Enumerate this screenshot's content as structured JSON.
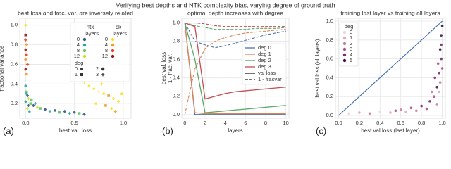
{
  "title": "Verifying best depths and NTK complexity bias, varying degree of ground truth",
  "chart_data": [
    {
      "type": "scatter",
      "panel_label": "(a)",
      "title": "best loss and frac. var. are inversely related",
      "x_label": "best val. loss",
      "y_label": "fractional variance",
      "xlim": [
        -0.06,
        1.08
      ],
      "ylim": [
        0.05,
        1.07
      ],
      "xticks": [
        {
          "value": 0,
          "label": "0.0"
        },
        {
          "value": 0.5,
          "label": "0.5"
        },
        {
          "value": 1,
          "label": "1.0"
        }
      ],
      "yticks": [
        0.2,
        0.4,
        0.6,
        0.8,
        {
          "value": 1,
          "label": "1.0"
        }
      ],
      "grid": true,
      "series": [
        {
          "name": "ntk",
          "legend_title": "layers",
          "legend_entries": [
            {
              "label": "0",
              "color": "#3b528b"
            },
            {
              "label": "4",
              "color": "#21a8a0"
            },
            {
              "label": "8",
              "color": "#5ec962"
            },
            {
              "label": "12",
              "color": "#c8e020"
            }
          ],
          "x": [
            0.0,
            0.01,
            0.02,
            0.03,
            0.0,
            0.05,
            0.08,
            0.1,
            0.12,
            0.15,
            0.2,
            0.25,
            0.3,
            0.35,
            0.4,
            0.45,
            0.5,
            0.55,
            0.6,
            0.02,
            0.04,
            0.06,
            0.01,
            0.03
          ],
          "values": [
            0.38,
            0.32,
            0.28,
            0.25,
            0.22,
            0.2,
            0.18,
            0.2,
            0.16,
            0.15,
            0.14,
            0.12,
            0.13,
            0.11,
            0.12,
            0.1,
            0.11,
            0.1,
            0.09,
            0.15,
            0.12,
            0.24,
            0.3,
            0.18
          ],
          "colors": [
            "#21a8a0",
            "#5ec962",
            "#3b528b",
            "#c8e020",
            "#21a8a0",
            "#5ec962",
            "#3b528b",
            "#21a8a0",
            "#c8e020",
            "#5ec962",
            "#3b528b",
            "#21a8a0",
            "#3b528b",
            "#5ec962",
            "#3b528b",
            "#21a8a0",
            "#3b528b",
            "#5ec962",
            "#3b528b",
            "#c8e020",
            "#21a8a0",
            "#5ec962",
            "#21a8a0",
            "#3b528b"
          ],
          "markers": [
            "circle",
            "square",
            "diamond",
            "plus",
            "circle",
            "square",
            "diamond",
            "plus",
            "circle",
            "square",
            "diamond",
            "plus",
            "circle",
            "square",
            "diamond",
            "plus",
            "circle",
            "square",
            "diamond",
            "plus",
            "circle",
            "square",
            "diamond",
            "plus"
          ]
        },
        {
          "name": "ck",
          "legend_title": "layers",
          "legend_entries": [
            {
              "label": "0",
              "color": "#f5e31b"
            },
            {
              "label": "4",
              "color": "#f59a1b"
            },
            {
              "label": "8",
              "color": "#e8401a"
            },
            {
              "label": "12",
              "color": "#a01010"
            }
          ],
          "x": [
            0.0,
            0.0,
            0.0,
            0.01,
            0.0,
            0.01,
            0.0,
            0.02,
            0.0,
            0.01,
            0.7,
            0.75,
            0.8,
            0.85,
            0.9,
            0.95,
            0.72,
            0.82,
            0.88,
            0.6,
            0.65,
            0.98,
            0.92,
            0.78
          ],
          "values": [
            1.0,
            0.9,
            0.85,
            0.8,
            0.75,
            0.7,
            0.65,
            0.6,
            0.55,
            0.5,
            0.35,
            0.32,
            0.3,
            0.28,
            0.25,
            0.22,
            0.2,
            0.18,
            0.15,
            0.42,
            0.38,
            0.3,
            0.12,
            0.4
          ],
          "colors": [
            "#f5e31b",
            "#a01010",
            "#e8401a",
            "#f59a1b",
            "#a01010",
            "#e8401a",
            "#f59a1b",
            "#e8401a",
            "#a01010",
            "#f59a1b",
            "#f5e31b",
            "#f5e31b",
            "#f5e31b",
            "#f59a1b",
            "#f5e31b",
            "#f5e31b",
            "#f5e31b",
            "#f59a1b",
            "#f5e31b",
            "#f5e31b",
            "#f5e31b",
            "#f5e31b",
            "#f59a1b",
            "#f5e31b"
          ],
          "markers": [
            "circle",
            "square",
            "diamond",
            "plus",
            "circle",
            "square",
            "diamond",
            "plus",
            "circle",
            "square",
            "diamond",
            "plus",
            "circle",
            "square",
            "diamond",
            "plus",
            "circle",
            "square",
            "diamond",
            "plus",
            "circle",
            "square",
            "diamond",
            "plus"
          ]
        }
      ],
      "marker_legend": {
        "title": "deg",
        "entries": [
          {
            "label": "0",
            "marker": "circle"
          },
          {
            "label": "1",
            "marker": "square"
          },
          {
            "label": "2",
            "marker": "diamond"
          },
          {
            "label": "3",
            "marker": "plus"
          }
        ]
      }
    },
    {
      "type": "line",
      "panel_label": "(b)",
      "title": "optimal depth increases with degree",
      "x_label": "layers",
      "y_label": [
        "best val. loss",
        "1 - frac. var."
      ],
      "xlim": [
        -0.3,
        10.3
      ],
      "ylim": [
        -0.04,
        1.05
      ],
      "xticks": [
        0,
        2,
        4,
        6,
        8,
        10
      ],
      "yticks": [
        {
          "value": 0,
          "label": "0.0"
        },
        0.2,
        0.4,
        0.6,
        0.8,
        {
          "value": 1,
          "label": "1.0"
        }
      ],
      "grid": true,
      "x": [
        0,
        1,
        2,
        3,
        4,
        5,
        6,
        7,
        8,
        9,
        10
      ],
      "series": [
        {
          "name": "deg 0",
          "color": "#4c72b0",
          "values": [
            1.0,
            0.0,
            0.0,
            0.0,
            0.0,
            0.0,
            0.0,
            0.0,
            0.0,
            0.0,
            0.0
          ],
          "values_dashed": [
            1.0,
            0.8,
            0.76,
            0.73,
            0.75,
            0.78,
            0.81,
            0.84,
            0.87,
            0.89,
            0.91
          ]
        },
        {
          "name": "deg 1",
          "color": "#dd8452",
          "values": [
            1.0,
            0.02,
            0.01,
            0.01,
            0.01,
            0.01,
            0.01,
            0.01,
            0.01,
            0.01,
            0.01
          ],
          "values_dashed": [
            0.0,
            0.5,
            0.72,
            0.8,
            0.84,
            0.87,
            0.89,
            0.9,
            0.91,
            0.92,
            0.93
          ]
        },
        {
          "name": "deg 2",
          "color": "#55a868",
          "values": [
            1.0,
            0.6,
            0.02,
            0.03,
            0.04,
            0.05,
            0.06,
            0.07,
            0.08,
            0.09,
            0.1
          ],
          "values_dashed": [
            1.0,
            0.97,
            0.95,
            0.93,
            0.93,
            0.93,
            0.93,
            0.94,
            0.94,
            0.94,
            0.95
          ]
        },
        {
          "name": "deg 3",
          "color": "#c44e52",
          "values": [
            1.0,
            0.96,
            0.17,
            0.2,
            0.23,
            0.25,
            0.26,
            0.27,
            0.28,
            0.29,
            0.3
          ],
          "values_dashed": [
            1.0,
            1.0,
            0.99,
            0.97,
            0.96,
            0.96,
            0.96,
            0.96,
            0.96,
            0.96,
            0.96
          ]
        }
      ],
      "line_styles": [
        {
          "label": "val loss",
          "style": "solid"
        },
        {
          "label": "1 - fracvar",
          "style": "dashed"
        }
      ]
    },
    {
      "type": "scatter",
      "panel_label": "(c)",
      "title": "training last layer vs training all layers",
      "x_label": "best val loss (last layer)",
      "y_label": "best val loss (all layers)",
      "xlim": [
        -0.03,
        1.03
      ],
      "ylim": [
        -0.03,
        1.03
      ],
      "xticks": [
        {
          "value": 0,
          "label": "0.0"
        },
        0.2,
        0.4,
        0.6,
        0.8,
        {
          "value": 1,
          "label": "1.0"
        }
      ],
      "yticks": [
        {
          "value": 0,
          "label": "0.0"
        },
        0.2,
        0.4,
        0.6,
        0.8,
        {
          "value": 1,
          "label": "1.0"
        }
      ],
      "grid": true,
      "reference_line": {
        "x": [
          0,
          1
        ],
        "values": [
          0,
          1
        ],
        "color": "#3a6ab0"
      },
      "series": [
        {
          "legend_title": "deg",
          "legend_entries": [
            {
              "label": "0",
              "color": "#f2d4dc"
            },
            {
              "label": "1",
              "color": "#e2aac0"
            },
            {
              "label": "2",
              "color": "#c97ba2"
            },
            {
              "label": "3",
              "color": "#a8508a"
            },
            {
              "label": "4",
              "color": "#7a2e70"
            },
            {
              "label": "5",
              "color": "#3d0f4a"
            }
          ],
          "x": [
            0.1,
            0.2,
            0.3,
            0.4,
            0.5,
            0.55,
            0.6,
            0.65,
            0.7,
            0.75,
            0.8,
            0.85,
            0.88,
            0.9,
            0.92,
            0.93,
            0.95,
            0.96,
            0.97,
            0.98,
            0.98,
            0.99,
            0.99,
            1.0,
            1.0,
            0.97,
            0.95,
            0.99
          ],
          "values": [
            0.02,
            0.03,
            0.02,
            0.04,
            0.03,
            0.05,
            0.06,
            0.04,
            0.08,
            0.05,
            0.1,
            0.07,
            0.15,
            0.25,
            0.2,
            0.4,
            0.3,
            0.55,
            0.45,
            0.7,
            0.35,
            0.85,
            0.6,
            0.95,
            0.5,
            0.25,
            0.12,
            0.75
          ],
          "colors": [
            "#f2d4dc",
            "#e2aac0",
            "#c97ba2",
            "#f2d4dc",
            "#e2aac0",
            "#a8508a",
            "#c97ba2",
            "#e2aac0",
            "#a8508a",
            "#c97ba2",
            "#7a2e70",
            "#a8508a",
            "#7a2e70",
            "#c97ba2",
            "#a8508a",
            "#7a2e70",
            "#3d0f4a",
            "#a8508a",
            "#7a2e70",
            "#3d0f4a",
            "#c97ba2",
            "#3d0f4a",
            "#7a2e70",
            "#3d0f4a",
            "#a8508a",
            "#e2aac0",
            "#c97ba2",
            "#7a2e70"
          ]
        }
      ]
    }
  ]
}
